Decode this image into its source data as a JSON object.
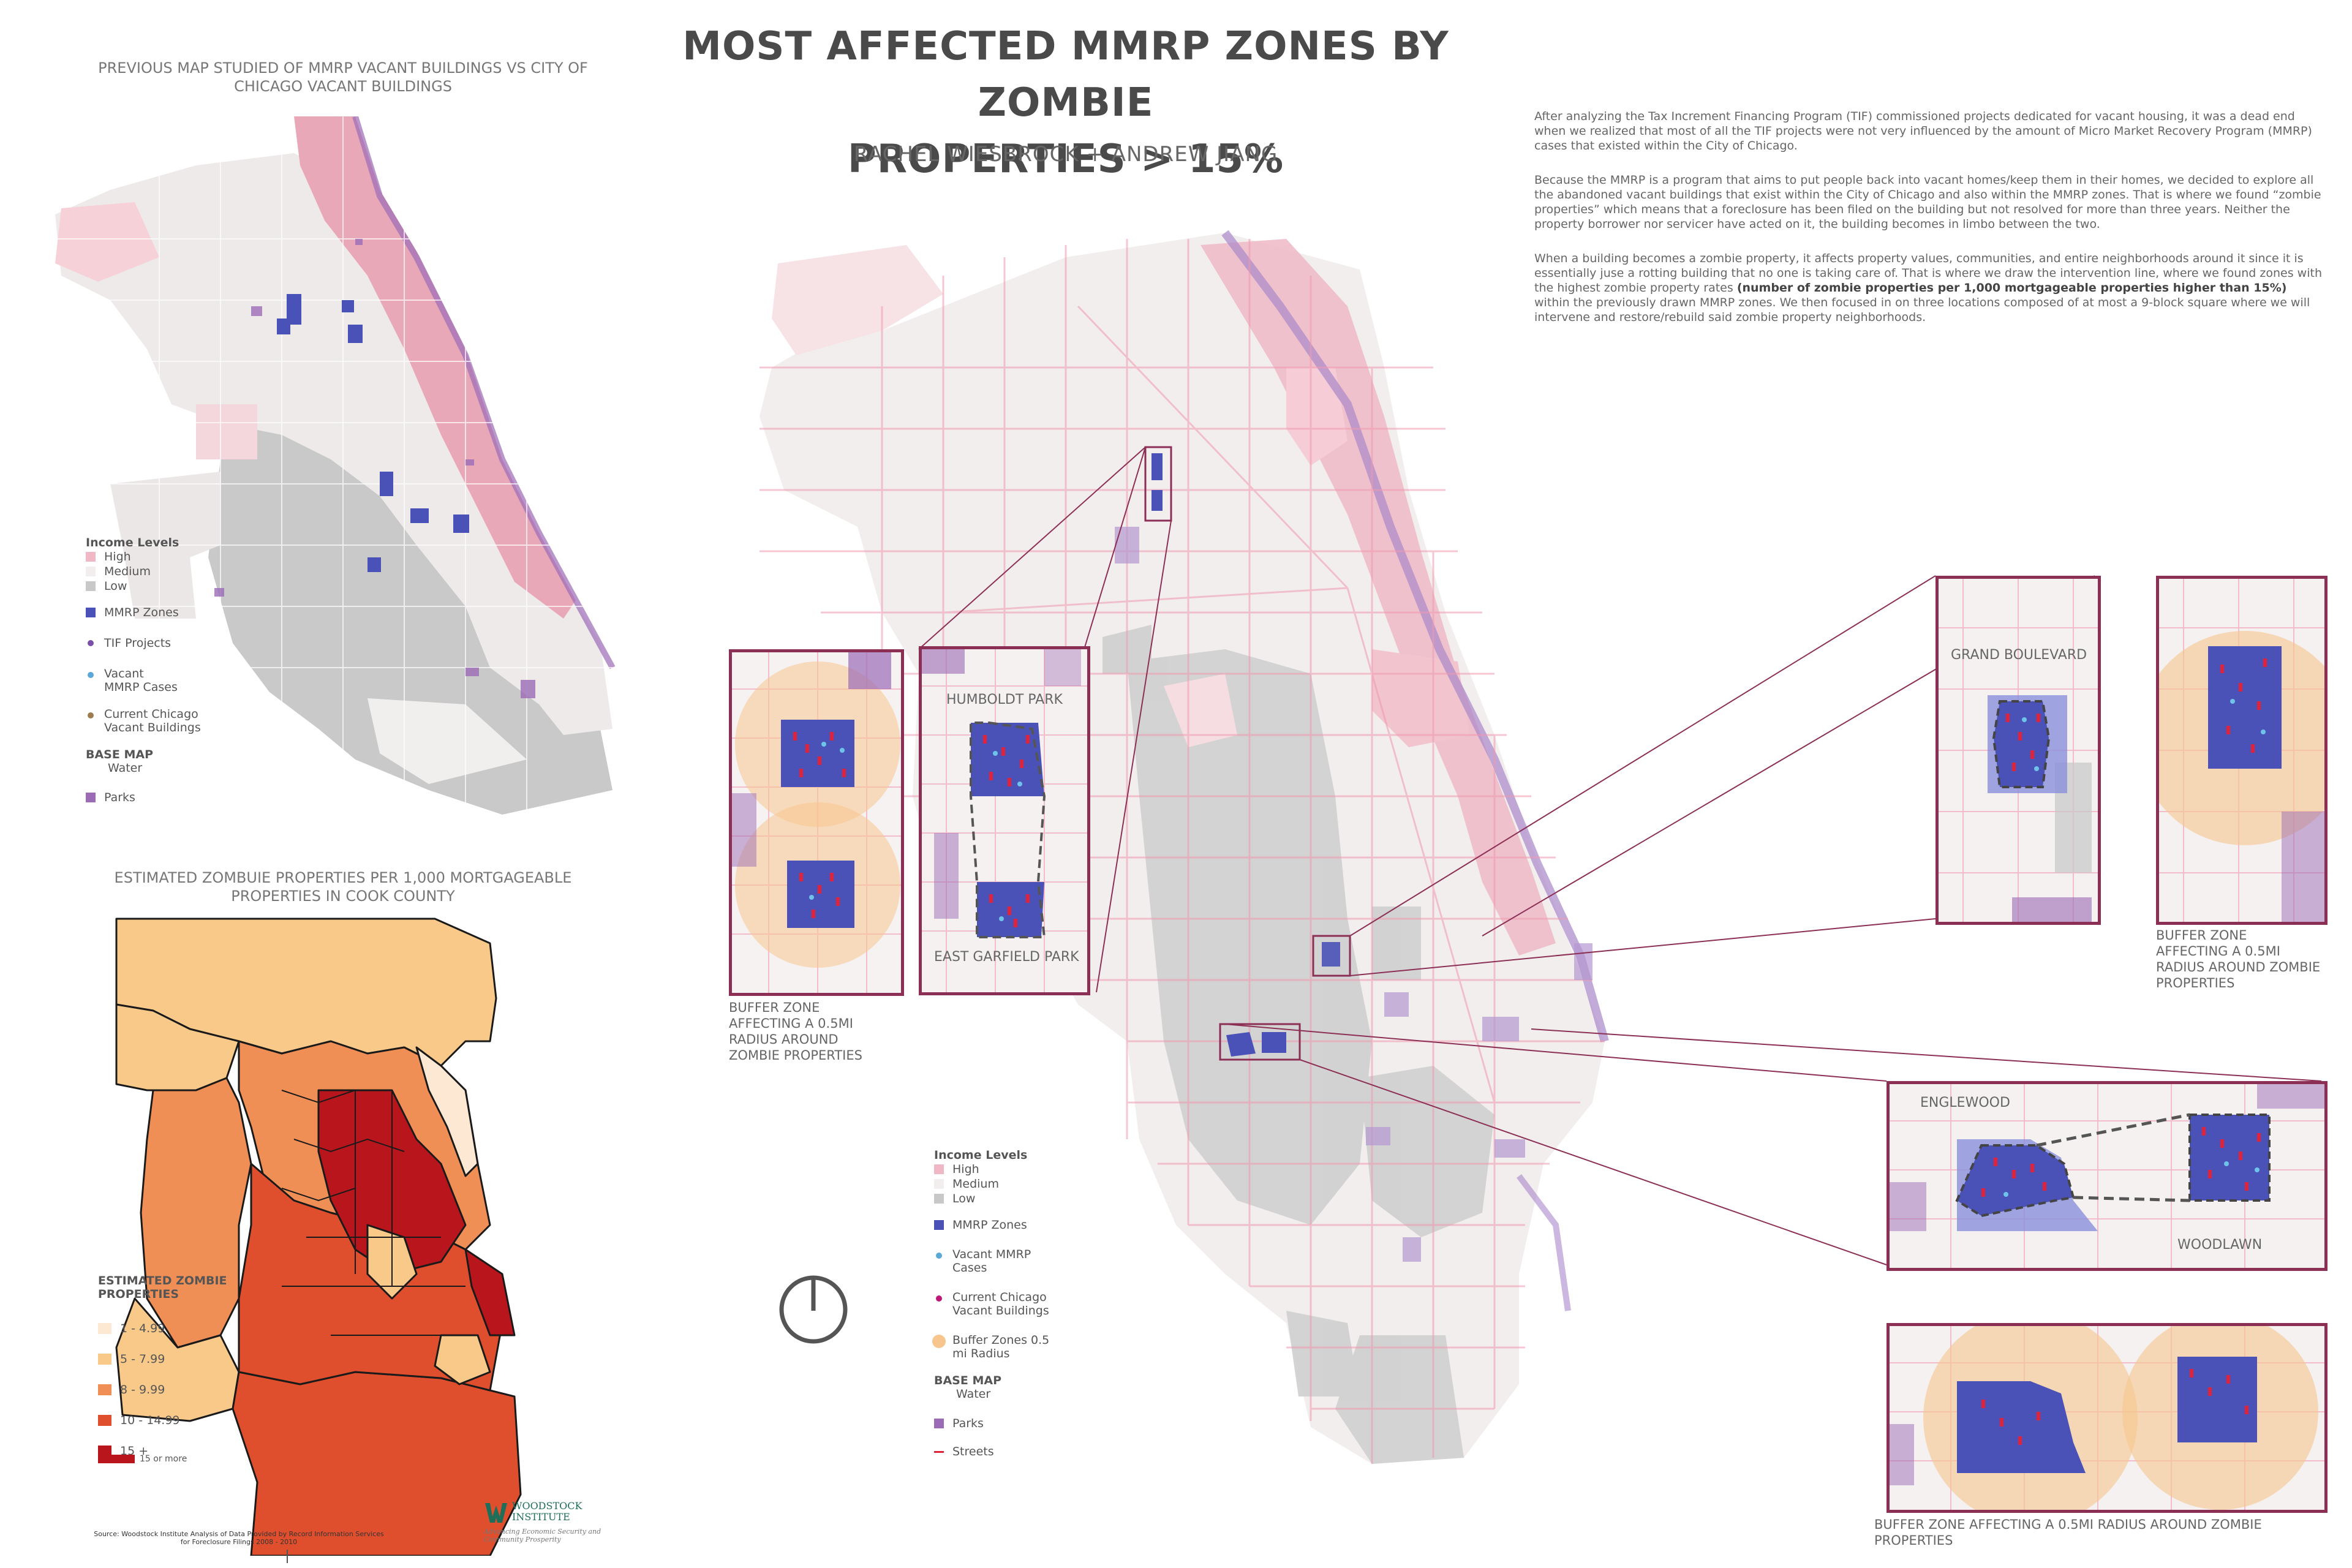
{
  "title_line1": "MOST AFFECTED MMRP ZONES BY ZOMBIE",
  "title_line2": "PROPERTIES > 15%",
  "authors": "RACHEL WIESBROCK + ANDREW JIANG",
  "previous_map": {
    "title": "PREVIOUS MAP STUDIED OF MMRP VACANT BUILDINGS VS CITY OF CHICAGO VACANT BUILDINGS",
    "legend": {
      "income_heading": "Income Levels",
      "income_high": "High",
      "income_medium": "Medium",
      "income_low": "Low",
      "mmrp_zones": "MMRP Zones",
      "tif_projects": "TIF Projects",
      "vacant_mmrp": "Vacant MMRP Cases",
      "current_vacant": "Current Chicago Vacant Buildings",
      "base_map": "BASE MAP",
      "water": "Water",
      "parks": "Parks"
    }
  },
  "cook_county": {
    "title": "ESTIMATED ZOMBUIE PROPERTIES PER 1,000 MORTGAGEABLE PROPERTIES IN COOK COUNTY",
    "legend_heading": "ESTIMATED ZOMBIE PROPERTIES",
    "classes": [
      {
        "label": "1 - 4.99",
        "color": "#fde9d3"
      },
      {
        "label": "5 - 7.99",
        "color": "#f9c98a"
      },
      {
        "label": "8 - 9.99",
        "color": "#f08f55"
      },
      {
        "label": "10 - 14.99",
        "color": "#df4f2e"
      },
      {
        "label": "15 +",
        "color": "#b8151c"
      }
    ],
    "class_15_note": "15 or more",
    "source": "Source: Woodstock Institute Analysis of Data Provided by Record Information Services for Foreclosure Filings 2008 - 2010",
    "logo_name": "WOODSTOCK INSTITUTE",
    "logo_tagline": "Advancing Economic Security and Community Prosperity"
  },
  "description": {
    "p1": "After analyzing the Tax Increment Financing Program (TIF) commissioned projects dedicated for vacant housing, it was a dead end when we realized that most of all the TIF projects were not very influenced by the amount of Micro Market Recovery Program (MMRP) cases that existed within the City of Chicago.",
    "p2": "Because the MMRP is a program that aims to put people back into vacant homes/keep them in their homes, we decided to explore all the abandoned vacant buildings that exist within the City of Chicago and also within the MMRP zones. That is where we found “zombie properties” which means that a foreclosure has been filed on the building but not resolved for more than three years. Neither the property borrower nor servicer have acted on it, the building becomes in limbo between the two.",
    "p3_start": "When a building becomes a zombie property, it affects property values, communities, and entire neighborhoods around it since it is essentially juse a rotting building that no one is taking care of. That is where we draw the intervention line, where we found zones with the highest zombie property rates ",
    "p3_bold": "(number of zombie properties per 1,000 mortgageable properties higher than 15%)",
    "p3_end": " within the previously drawn MMRP zones. We then focused in on three locations composed of at most a 9-block square where we will intervene and restore/rebuild said zombie property neighborhoods."
  },
  "main_legend": {
    "income_heading": "Income Levels",
    "income_high": "High",
    "income_medium": "Medium",
    "income_low": "Low",
    "mmrp_zones": "MMRP Zones",
    "vacant_mmrp": "Vacant MMRP Cases",
    "current_vacant": "Current Chicago Vacant Buildings",
    "buffer_zones": "Buffer Zones 0.5 mi Radius",
    "base_map": "BASE MAP",
    "water": "Water",
    "parks": "Parks",
    "streets": "Streets"
  },
  "insets": {
    "humboldt_park": "HUMBOLDT PARK",
    "east_garfield_park": "EAST GARFIELD PARK",
    "grand_boulevard": "GRAND BOULEVARD",
    "englewood": "ENGLEWOOD",
    "woodlawn": "WOODLAWN",
    "buffer_caption_left": "BUFFER ZONE AFFECTING A 0.5MI RADIUS AROUND ZOMBIE PROPERTIES",
    "buffer_caption_right": "BUFFER ZONE AFFECTING A 0.5MI RADIUS AROUND ZOMBIE PROPERTIES",
    "buffer_caption_bottom": "BUFFER ZONE AFFECTING A 0.5MI RADIUS AROUND ZOMBIE PROPERTIES"
  },
  "colors": {
    "income_high": "#f0b8c4",
    "income_medium": "#f4f1f1",
    "income_low": "#c8c8c8",
    "mmrp": "#4a52b8",
    "parks": "#9b6bb6",
    "inset_border": "#8c2f55",
    "buffer": "#f7c68e"
  }
}
